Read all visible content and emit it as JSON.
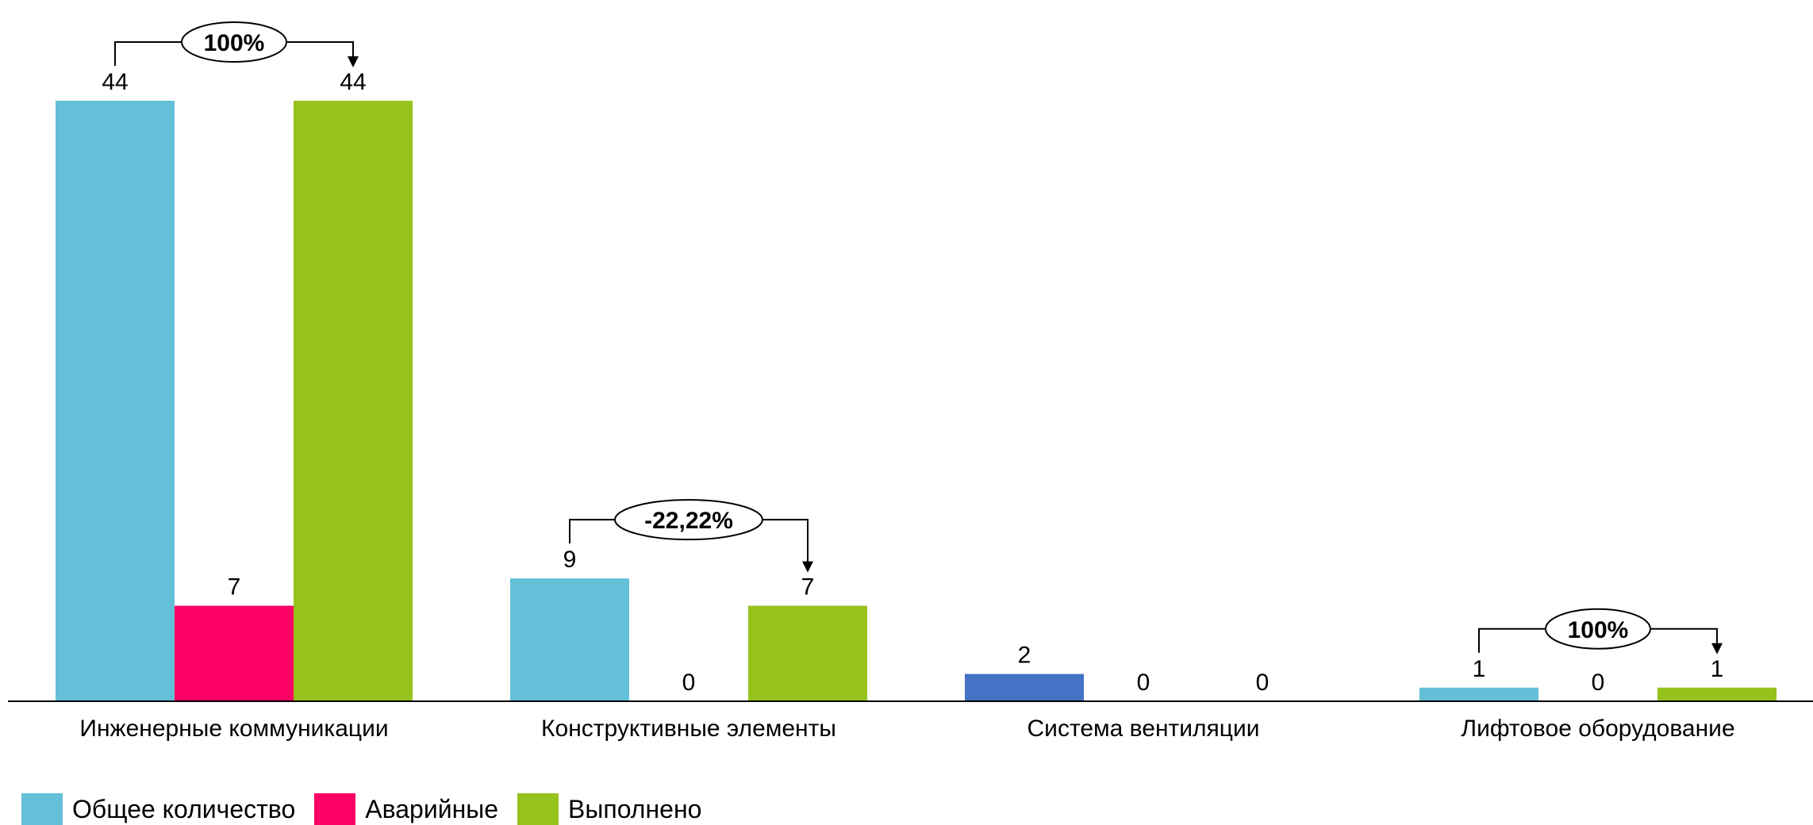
{
  "chart_data": {
    "type": "bar",
    "title": "",
    "xlabel": "",
    "ylabel": "",
    "ylim": [
      0,
      44
    ],
    "grid": false,
    "categories": [
      "Инженерные коммуникации",
      "Конструктивные элементы",
      "Система вентиляции",
      "Лифтовое оборудование"
    ],
    "series": [
      {
        "name": "Общее количество",
        "color": "#63C0D8",
        "values": [
          44,
          9,
          2,
          1
        ]
      },
      {
        "name": "Аварийные",
        "color": "#FF0066",
        "values": [
          7,
          0,
          0,
          0
        ]
      },
      {
        "name": "Выполнено",
        "color": "#96C21E",
        "values": [
          44,
          7,
          0,
          1
        ]
      }
    ],
    "point_colors": [
      {
        "series": 0,
        "category": 2,
        "color": "#4472C4"
      }
    ],
    "annotations": [
      {
        "category": 0,
        "text": "100%"
      },
      {
        "category": 1,
        "text": "-22,22%"
      },
      {
        "category": 3,
        "text": "100%"
      }
    ],
    "legend": {
      "placement": "bottom-left",
      "items": [
        "Общее количество",
        "Аварийные",
        "Выполнено"
      ]
    }
  }
}
